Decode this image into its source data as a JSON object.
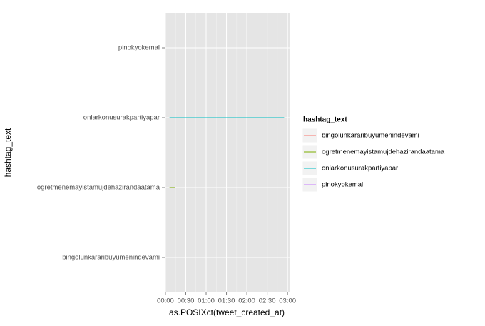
{
  "chart_data": {
    "type": "line",
    "x_label": "as.POSIXct(tweet_created_at)",
    "y_label": "hashtag_text",
    "legend_title": "hashtag_text",
    "legend_position": "right",
    "grid": true,
    "categories": [
      "bingolunkararibuyumenindevami",
      "ogretmenemayistamujdehazirandaatama",
      "onlarkonusurakpartiyapar",
      "pinokyokemal"
    ],
    "xlim": [
      -1,
      183
    ],
    "xticks": [
      {
        "value": 0,
        "label": "00:00"
      },
      {
        "value": 30,
        "label": "00:30"
      },
      {
        "value": 60,
        "label": "01:00"
      },
      {
        "value": 90,
        "label": "01:30"
      },
      {
        "value": 120,
        "label": "02:00"
      },
      {
        "value": 150,
        "label": "02:30"
      },
      {
        "value": 180,
        "label": "03:00"
      }
    ],
    "series": [
      {
        "name": "bingolunkararibuyumenindevami",
        "color": "#F8766D",
        "x": []
      },
      {
        "name": "ogretmenemayistamujdehazirandaatama",
        "color": "#7CAE00",
        "x": [
          6,
          14
        ]
      },
      {
        "name": "onlarkonusurakpartiyapar",
        "color": "#00BFC4",
        "x": [
          6,
          175
        ]
      },
      {
        "name": "pinokyokemal",
        "color": "#C77CFF",
        "x": []
      }
    ]
  }
}
